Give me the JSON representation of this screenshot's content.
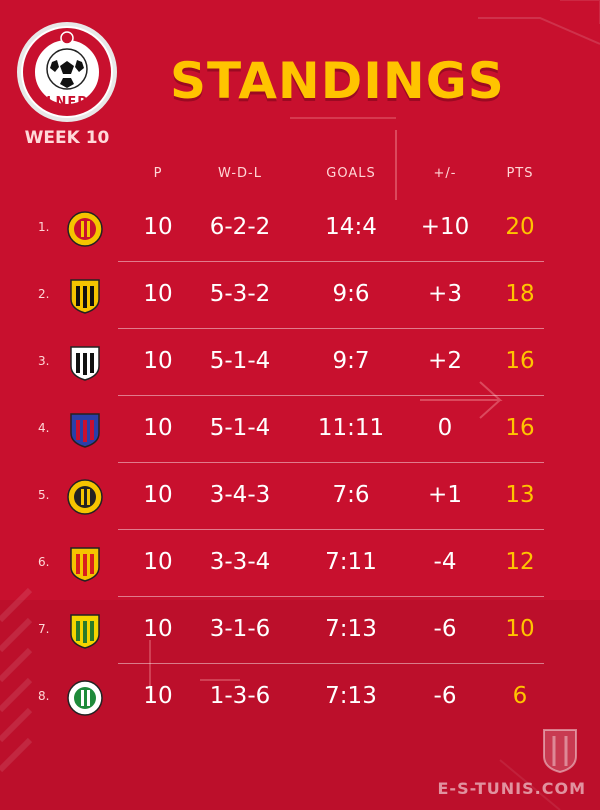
{
  "header": {
    "league_letters": "LNFP",
    "week": "WEEK 10",
    "title": "STANDINGS"
  },
  "columns": {
    "played": "P",
    "wdl": "W-D-L",
    "goals": "GOALS",
    "diff": "+/-",
    "pts": "PTS"
  },
  "rows": [
    {
      "rank": "1.",
      "crest": "crest-red-yellow-stripes",
      "played": "10",
      "wdl": "6-2-2",
      "goals": "14:4",
      "diff": "+10",
      "pts": "20",
      "colors": [
        "#f5c400",
        "#c8102e"
      ]
    },
    {
      "rank": "2.",
      "crest": "crest-black-yellow-stripes",
      "played": "10",
      "wdl": "5-3-2",
      "goals": "9:6",
      "diff": "+3",
      "pts": "18",
      "colors": [
        "#f5c400",
        "#111111"
      ]
    },
    {
      "rank": "3.",
      "crest": "crest-black-white-stripes",
      "played": "10",
      "wdl": "5-1-4",
      "goals": "9:7",
      "diff": "+2",
      "pts": "16",
      "colors": [
        "#ffffff",
        "#111111"
      ]
    },
    {
      "rank": "4.",
      "crest": "crest-blue-red-stripes",
      "played": "10",
      "wdl": "5-1-4",
      "goals": "11:11",
      "diff": "0",
      "pts": "16",
      "colors": [
        "#2a3fa8",
        "#c8102e"
      ]
    },
    {
      "rank": "5.",
      "crest": "crest-gold-black-round",
      "played": "10",
      "wdl": "3-4-3",
      "goals": "7:6",
      "diff": "+1",
      "pts": "13",
      "colors": [
        "#f5c400",
        "#222222"
      ]
    },
    {
      "rank": "6.",
      "crest": "crest-red-yellow-shield",
      "played": "10",
      "wdl": "3-3-4",
      "goals": "7:11",
      "diff": "-4",
      "pts": "12",
      "colors": [
        "#f5c400",
        "#d81e1e"
      ]
    },
    {
      "rank": "7.",
      "crest": "crest-yellow-green-shield",
      "played": "10",
      "wdl": "3-1-6",
      "goals": "7:13",
      "diff": "-6",
      "pts": "10",
      "colors": [
        "#f5d400",
        "#2a7a2a"
      ]
    },
    {
      "rank": "8.",
      "crest": "crest-green-white-round",
      "played": "10",
      "wdl": "1-3-6",
      "goals": "7:13",
      "diff": "-6",
      "pts": "6",
      "colors": [
        "#ffffff",
        "#1e8a3a"
      ]
    }
  ],
  "footer": {
    "site": "E-S-TUNIS.COM"
  },
  "theme": {
    "background": "#c8102e",
    "accent": "#ffc400"
  }
}
